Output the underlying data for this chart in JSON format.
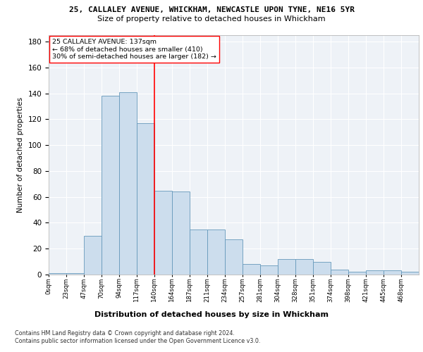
{
  "title": "25, CALLALEY AVENUE, WHICKHAM, NEWCASTLE UPON TYNE, NE16 5YR",
  "subtitle": "Size of property relative to detached houses in Whickham",
  "xlabel": "Distribution of detached houses by size in Whickham",
  "ylabel": "Number of detached properties",
  "bar_color": "#ccdded",
  "bar_edge_color": "#6699bb",
  "vline_color": "red",
  "annotation_line1": "25 CALLALEY AVENUE: 137sqm",
  "annotation_line2": "← 68% of detached houses are smaller (410)",
  "annotation_line3": "30% of semi-detached houses are larger (182) →",
  "footer_line1": "Contains HM Land Registry data © Crown copyright and database right 2024.",
  "footer_line2": "Contains public sector information licensed under the Open Government Licence v3.0.",
  "bin_labels": [
    "0sqm",
    "23sqm",
    "47sqm",
    "70sqm",
    "94sqm",
    "117sqm",
    "140sqm",
    "164sqm",
    "187sqm",
    "211sqm",
    "234sqm",
    "257sqm",
    "281sqm",
    "304sqm",
    "328sqm",
    "351sqm",
    "374sqm",
    "398sqm",
    "421sqm",
    "445sqm",
    "468sqm"
  ],
  "bar_heights": [
    1,
    1,
    30,
    138,
    141,
    117,
    65,
    64,
    35,
    35,
    27,
    8,
    7,
    12,
    12,
    10,
    4,
    2,
    3,
    3,
    2
  ],
  "vline_idx": 6,
  "ylim": [
    0,
    185
  ],
  "yticks": [
    0,
    20,
    40,
    60,
    80,
    100,
    120,
    140,
    160,
    180
  ],
  "figsize": [
    6.0,
    5.0
  ],
  "dpi": 100,
  "bg_color": "#eef2f7"
}
